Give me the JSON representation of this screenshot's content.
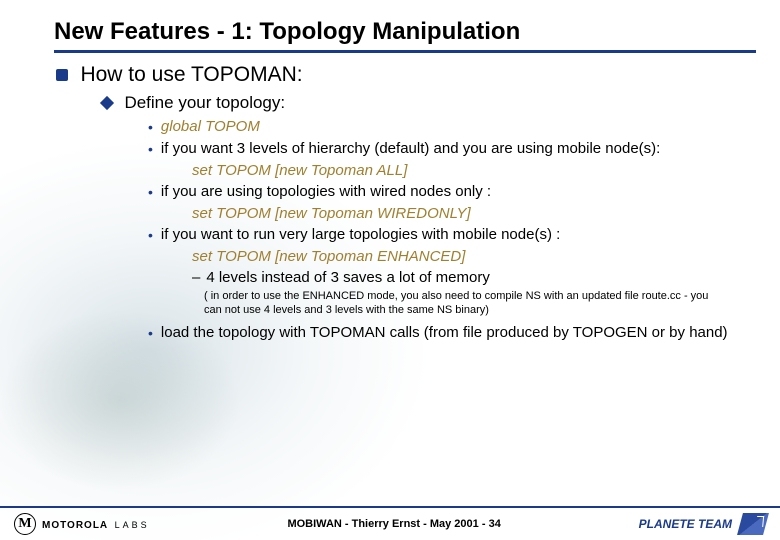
{
  "title": "New Features - 1: Topology Manipulation",
  "lvl1": {
    "text": "How to use TOPOMAN:"
  },
  "lvl2": {
    "text": "Define your topology:"
  },
  "b1": {
    "text": "global TOPOM"
  },
  "b2": {
    "text": "if you want 3 levels of hierarchy (default) and you are using mobile node(s):"
  },
  "b2code": {
    "text": "set TOPOM [new Topoman ALL]"
  },
  "b3": {
    "text": "if you are using topologies with wired nodes only :"
  },
  "b3code": {
    "text": "set TOPOM [new Topoman WIREDONLY]"
  },
  "b4": {
    "text": "if you want to run very large topologies with mobile node(s) :"
  },
  "b4code": {
    "text": "set TOPOM [new Topoman ENHANCED]"
  },
  "b4sub": {
    "text": "4 levels instead of 3 saves a lot of memory"
  },
  "note": {
    "text": "( in order to use the ENHANCED mode, you also need to compile NS with an updated file route.cc - you can not use 4 levels and 3 levels with the same NS binary)"
  },
  "b5": {
    "text": "load the topology with TOPOMAN calls (from file produced by TOPOGEN or by hand)"
  },
  "footer": {
    "logo_brand": "MOTOROLA",
    "logo_sub": "LABS",
    "center": "MOBIWAN - Thierry Ernst - May 2001",
    "page": "34",
    "right": "PLANETE TEAM"
  },
  "colors": {
    "accent": "#1a3a8a",
    "code": "#a08030"
  }
}
